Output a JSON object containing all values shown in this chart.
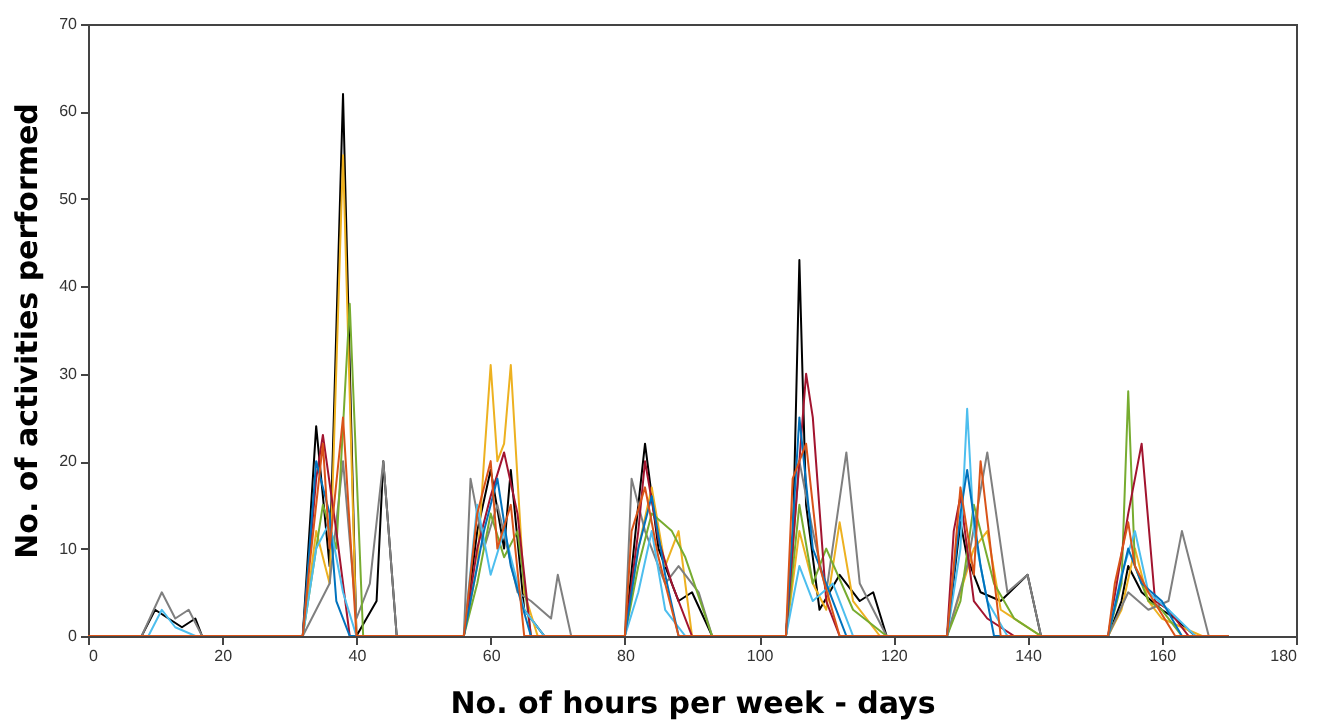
{
  "chart_data": {
    "type": "line",
    "xlabel": "No. of hours per week - days",
    "ylabel": "No. of activities performed",
    "xlim": [
      0,
      180
    ],
    "ylim": [
      0,
      70
    ],
    "xticks": [
      0,
      20,
      40,
      60,
      80,
      100,
      120,
      140,
      160,
      180
    ],
    "yticks": [
      0,
      10,
      20,
      30,
      40,
      50,
      60,
      70
    ],
    "grid": false,
    "legend": false,
    "line_style": "solid",
    "series": [
      {
        "color": "#000000",
        "x": [
          0,
          8,
          10,
          12,
          14,
          16,
          17,
          32,
          34,
          36,
          38,
          40,
          43,
          44,
          46,
          56,
          58,
          60,
          62,
          63,
          65,
          68,
          80,
          82,
          83,
          85,
          88,
          90,
          93,
          104,
          105,
          106,
          107,
          109,
          112,
          115,
          117,
          119,
          128,
          130,
          131,
          133,
          136,
          140,
          142,
          152,
          154,
          155,
          157,
          160,
          162,
          165,
          170
        ],
        "values": [
          0,
          0,
          3,
          2,
          1,
          2,
          0,
          0,
          24,
          8,
          62,
          0,
          4,
          20,
          0,
          0,
          12,
          19,
          10,
          19,
          3,
          0,
          0,
          15,
          22,
          10,
          4,
          5,
          0,
          0,
          10,
          43,
          15,
          3,
          7,
          4,
          5,
          0,
          0,
          13,
          9,
          5,
          4,
          7,
          0,
          0,
          4,
          8,
          5,
          3,
          2,
          0,
          0
        ]
      },
      {
        "color": "#edb120",
        "x": [
          0,
          32,
          34,
          36,
          38,
          40,
          56,
          58,
          59,
          60,
          61,
          62,
          63,
          65,
          67,
          80,
          82,
          84,
          86,
          88,
          90,
          104,
          106,
          108,
          110,
          112,
          114,
          118,
          128,
          130,
          132,
          134,
          136,
          142,
          152,
          154,
          156,
          158,
          160,
          166,
          170
        ],
        "values": [
          0,
          0,
          12,
          6,
          55,
          0,
          0,
          8,
          20,
          31,
          20,
          22,
          31,
          5,
          0,
          0,
          10,
          17,
          8,
          12,
          0,
          0,
          12,
          6,
          3,
          13,
          4,
          0,
          0,
          5,
          10,
          12,
          3,
          0,
          0,
          3,
          10,
          4,
          2,
          0,
          0
        ]
      },
      {
        "color": "#7f7f7f",
        "x": [
          0,
          8,
          11,
          13,
          15,
          17,
          32,
          34,
          36,
          38,
          40,
          42,
          44,
          46,
          56,
          57,
          59,
          61,
          64,
          66,
          69,
          70,
          72,
          80,
          81,
          83,
          86,
          88,
          91,
          93,
          104,
          106,
          108,
          110,
          113,
          115,
          117,
          119,
          128,
          131,
          134,
          137,
          140,
          142,
          152,
          155,
          158,
          161,
          163,
          167,
          170
        ],
        "values": [
          0,
          0,
          5,
          2,
          3,
          0,
          0,
          3,
          6,
          20,
          2,
          6,
          20,
          0,
          0,
          18,
          10,
          15,
          5,
          4,
          2,
          7,
          0,
          0,
          18,
          12,
          6,
          8,
          5,
          0,
          0,
          20,
          12,
          5,
          21,
          6,
          3,
          0,
          0,
          8,
          21,
          5,
          7,
          0,
          0,
          5,
          3,
          4,
          12,
          0,
          0
        ]
      },
      {
        "color": "#77ac30",
        "x": [
          0,
          32,
          35,
          37,
          39,
          41,
          56,
          58,
          60,
          62,
          64,
          66,
          80,
          82,
          84,
          87,
          89,
          93,
          104,
          106,
          108,
          110,
          114,
          119,
          128,
          130,
          132,
          135,
          138,
          142,
          152,
          154,
          155,
          156,
          158,
          160,
          163,
          170
        ],
        "values": [
          0,
          0,
          15,
          10,
          38,
          0,
          0,
          6,
          14,
          9,
          12,
          0,
          0,
          8,
          14,
          12,
          9,
          0,
          0,
          15,
          6,
          10,
          3,
          0,
          0,
          4,
          15,
          6,
          2,
          0,
          0,
          6,
          28,
          8,
          4,
          3,
          0,
          0
        ]
      },
      {
        "color": "#a2142f",
        "x": [
          0,
          32,
          34,
          35,
          37,
          39,
          56,
          58,
          60,
          62,
          64,
          66,
          80,
          82,
          83,
          85,
          87,
          90,
          104,
          106,
          107,
          108,
          110,
          112,
          117,
          128,
          129,
          130,
          132,
          134,
          138,
          152,
          155,
          157,
          159,
          161,
          164,
          170
        ],
        "values": [
          0,
          0,
          18,
          23,
          12,
          0,
          0,
          10,
          16,
          21,
          14,
          0,
          0,
          12,
          20,
          11,
          6,
          0,
          0,
          20,
          30,
          25,
          4,
          0,
          0,
          0,
          12,
          16,
          4,
          2,
          0,
          0,
          14,
          22,
          4,
          3,
          0,
          0
        ]
      },
      {
        "color": "#4dbeee",
        "x": [
          0,
          9,
          11,
          13,
          16,
          32,
          34,
          36,
          38,
          40,
          56,
          58,
          60,
          62,
          65,
          68,
          80,
          82,
          84,
          86,
          89,
          104,
          106,
          108,
          111,
          114,
          128,
          130,
          131,
          132,
          134,
          137,
          152,
          154,
          156,
          158,
          161,
          165,
          170
        ],
        "values": [
          0,
          0,
          3,
          1,
          0,
          0,
          10,
          13,
          5,
          0,
          0,
          15,
          7,
          12,
          3,
          0,
          0,
          5,
          12,
          3,
          0,
          0,
          8,
          4,
          6,
          0,
          0,
          10,
          26,
          12,
          4,
          0,
          0,
          7,
          12,
          5,
          3,
          0,
          0
        ]
      },
      {
        "color": "#0072bd",
        "x": [
          0,
          32,
          34,
          36,
          37,
          39,
          56,
          59,
          61,
          63,
          66,
          80,
          82,
          84,
          86,
          88,
          104,
          106,
          108,
          110,
          113,
          128,
          130,
          131,
          133,
          135,
          152,
          155,
          157,
          160,
          163,
          170
        ],
        "values": [
          0,
          0,
          20,
          14,
          4,
          0,
          0,
          12,
          18,
          8,
          0,
          0,
          10,
          16,
          7,
          0,
          0,
          25,
          10,
          6,
          0,
          0,
          14,
          19,
          8,
          0,
          0,
          10,
          6,
          4,
          0,
          0
        ]
      },
      {
        "color": "#d95319",
        "x": [
          0,
          32,
          33,
          35,
          36,
          38,
          40,
          56,
          58,
          60,
          61,
          63,
          65,
          80,
          81,
          83,
          85,
          88,
          104,
          105,
          107,
          109,
          112,
          128,
          129,
          130,
          132,
          133,
          136,
          152,
          153,
          155,
          156,
          158,
          162,
          170
        ],
        "values": [
          0,
          0,
          8,
          22,
          10,
          25,
          0,
          0,
          14,
          20,
          10,
          15,
          0,
          0,
          12,
          17,
          9,
          0,
          0,
          18,
          22,
          8,
          0,
          0,
          8,
          17,
          7,
          20,
          0,
          0,
          6,
          13,
          8,
          5,
          0,
          0
        ]
      }
    ]
  }
}
